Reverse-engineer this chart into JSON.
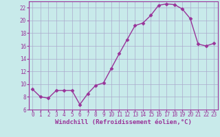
{
  "x": [
    0,
    1,
    2,
    3,
    4,
    5,
    6,
    7,
    8,
    9,
    10,
    11,
    12,
    13,
    14,
    15,
    16,
    17,
    18,
    19,
    20,
    21,
    22,
    23
  ],
  "y": [
    9.2,
    8.0,
    7.8,
    9.0,
    9.0,
    9.0,
    6.8,
    8.5,
    9.8,
    10.2,
    12.5,
    14.8,
    17.0,
    19.2,
    19.6,
    20.8,
    22.4,
    22.6,
    22.5,
    21.8,
    20.3,
    16.3,
    16.0,
    16.4
  ],
  "line_color": "#993399",
  "marker": "D",
  "marker_size": 2.5,
  "bg_color": "#c8eaea",
  "grid_color": "#aaaacc",
  "xlabel": "Windchill (Refroidissement éolien,°C)",
  "ylim": [
    6,
    23
  ],
  "xlim": [
    -0.5,
    23.5
  ],
  "yticks": [
    6,
    8,
    10,
    12,
    14,
    16,
    18,
    20,
    22
  ],
  "xticks": [
    0,
    1,
    2,
    3,
    4,
    5,
    6,
    7,
    8,
    9,
    10,
    11,
    12,
    13,
    14,
    15,
    16,
    17,
    18,
    19,
    20,
    21,
    22,
    23
  ],
  "tick_color": "#993399",
  "label_color": "#993399",
  "spine_color": "#993399",
  "xlabel_fontsize": 6.5,
  "tick_fontsize": 5.5,
  "linewidth": 1.0
}
